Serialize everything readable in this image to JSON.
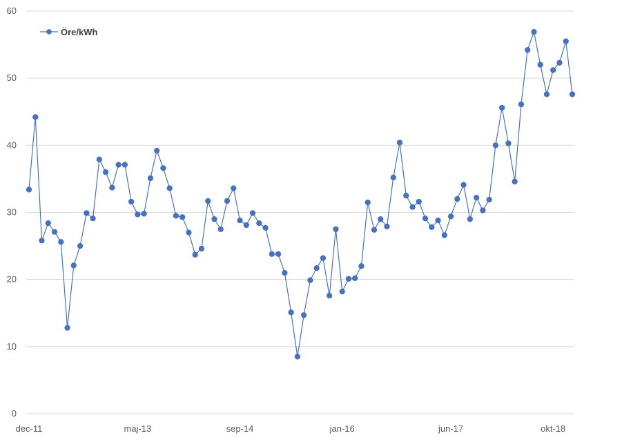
{
  "chart_data": {
    "type": "line",
    "title": "",
    "xlabel": "",
    "ylabel": "",
    "ylim": [
      0,
      60
    ],
    "y_ticks": [
      0,
      10,
      20,
      30,
      40,
      50,
      60
    ],
    "x_tick_labels": [
      {
        "label": "dec-11",
        "index": 0
      },
      {
        "label": "maj-13",
        "index": 17
      },
      {
        "label": "sep-14",
        "index": 33
      },
      {
        "label": "jan-16",
        "index": 49
      },
      {
        "label": "jun-17",
        "index": 66
      },
      {
        "label": "okt-18",
        "index": 82
      }
    ],
    "grid": "horizontal",
    "legend_position": "top-left",
    "series": [
      {
        "name": "Öre/kWh",
        "color": "#4472C4",
        "values": [
          33.4,
          44.2,
          25.8,
          28.4,
          27.1,
          25.6,
          12.8,
          22.1,
          25.0,
          29.9,
          29.1,
          37.9,
          36.0,
          33.7,
          37.1,
          37.1,
          31.6,
          29.7,
          29.8,
          35.1,
          39.2,
          36.6,
          33.6,
          29.5,
          29.3,
          27.0,
          23.7,
          24.6,
          31.7,
          29.0,
          27.5,
          31.7,
          33.6,
          28.8,
          28.1,
          29.9,
          28.4,
          27.7,
          23.8,
          23.8,
          21.0,
          15.1,
          8.5,
          14.7,
          19.9,
          21.7,
          23.2,
          17.6,
          27.5,
          18.2,
          20.1,
          20.2,
          22.0,
          31.5,
          27.4,
          29.0,
          27.9,
          35.2,
          40.4,
          32.5,
          30.8,
          31.6,
          29.1,
          27.8,
          28.8,
          26.6,
          29.4,
          32.0,
          34.1,
          29.0,
          32.2,
          30.3,
          31.9,
          40.0,
          45.6,
          40.3,
          34.6,
          46.1,
          54.2,
          56.9,
          52.0,
          47.6,
          51.2,
          52.3,
          55.5,
          47.6
        ]
      }
    ]
  }
}
